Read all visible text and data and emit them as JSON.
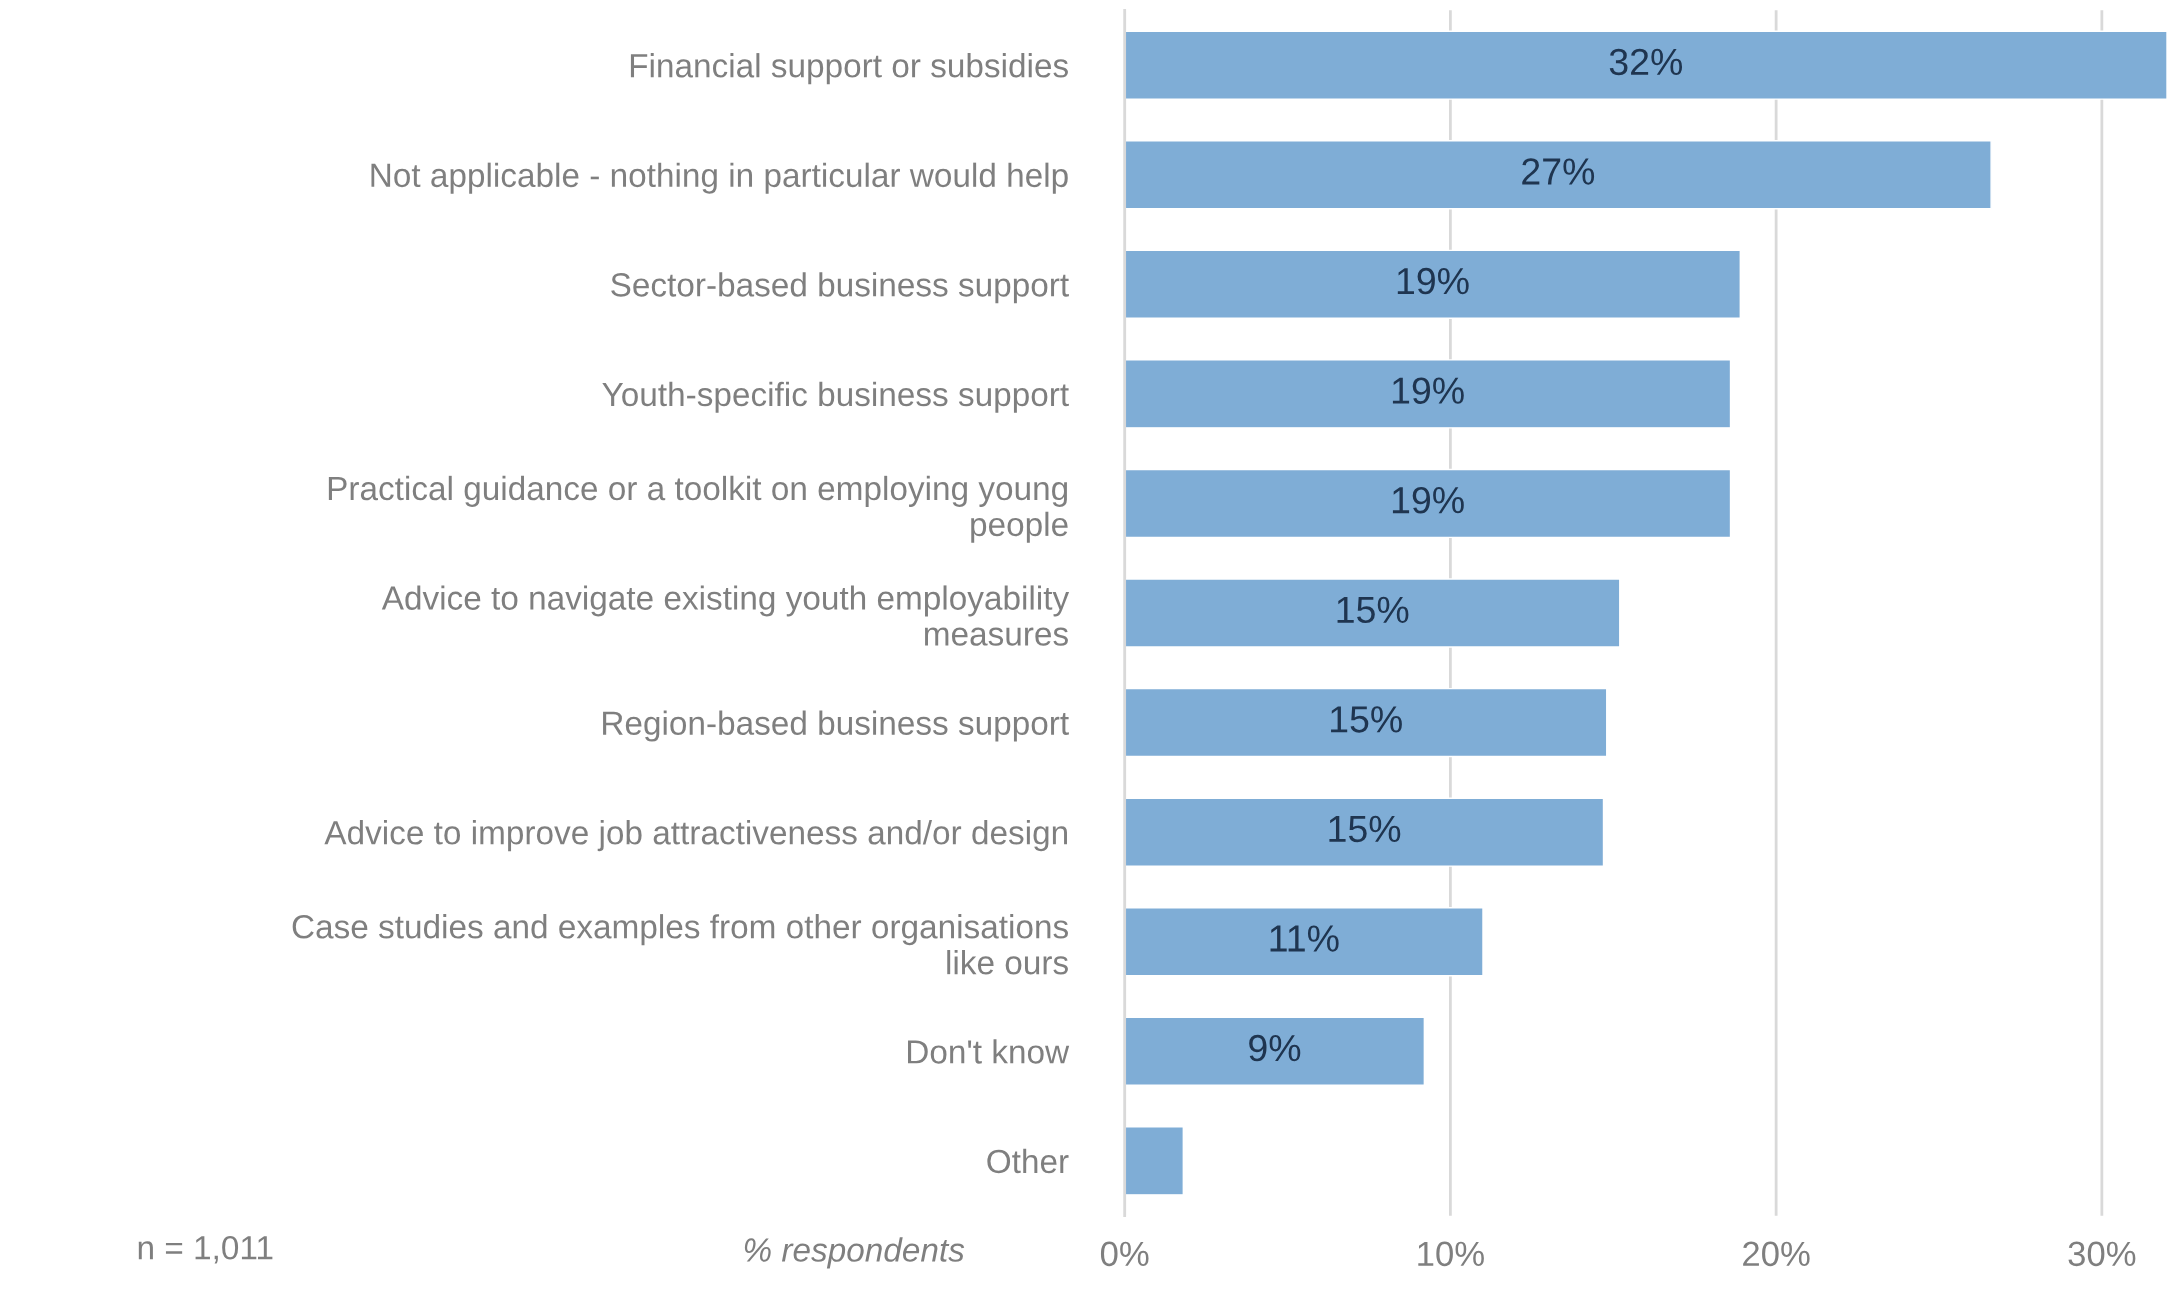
{
  "chart_data": {
    "type": "bar",
    "orientation": "horizontal",
    "xlabel": "% respondents",
    "categories": [
      "Financial support or subsidies",
      "Not applicable - nothing in particular would help",
      "Sector-based business support",
      "Youth-specific business support",
      "Practical guidance or a toolkit on employing young people",
      "Advice to navigate existing youth employability measures",
      "Region-based business support",
      "Advice to improve job attractiveness and/or design",
      "Case studies and examples from other organisations like ours",
      "Don't know",
      "Other"
    ],
    "values": [
      32,
      26.6,
      18.9,
      18.6,
      18.6,
      15.2,
      14.8,
      14.7,
      11.0,
      9.2,
      1.8
    ],
    "value_labels": [
      "32%",
      "27%",
      "19%",
      "19%",
      "19%",
      "15%",
      "15%",
      "15%",
      "11%",
      "9%",
      null
    ],
    "color": "#7fadd6",
    "xlim": [
      0,
      32
    ],
    "xticks": [
      {
        "value": 0,
        "label": "0%"
      },
      {
        "value": 10,
        "label": "10%"
      },
      {
        "value": 20,
        "label": "20%"
      },
      {
        "value": 30,
        "label": "30%"
      }
    ],
    "grid": "x",
    "annotations": [
      "n = 1,011"
    ]
  }
}
